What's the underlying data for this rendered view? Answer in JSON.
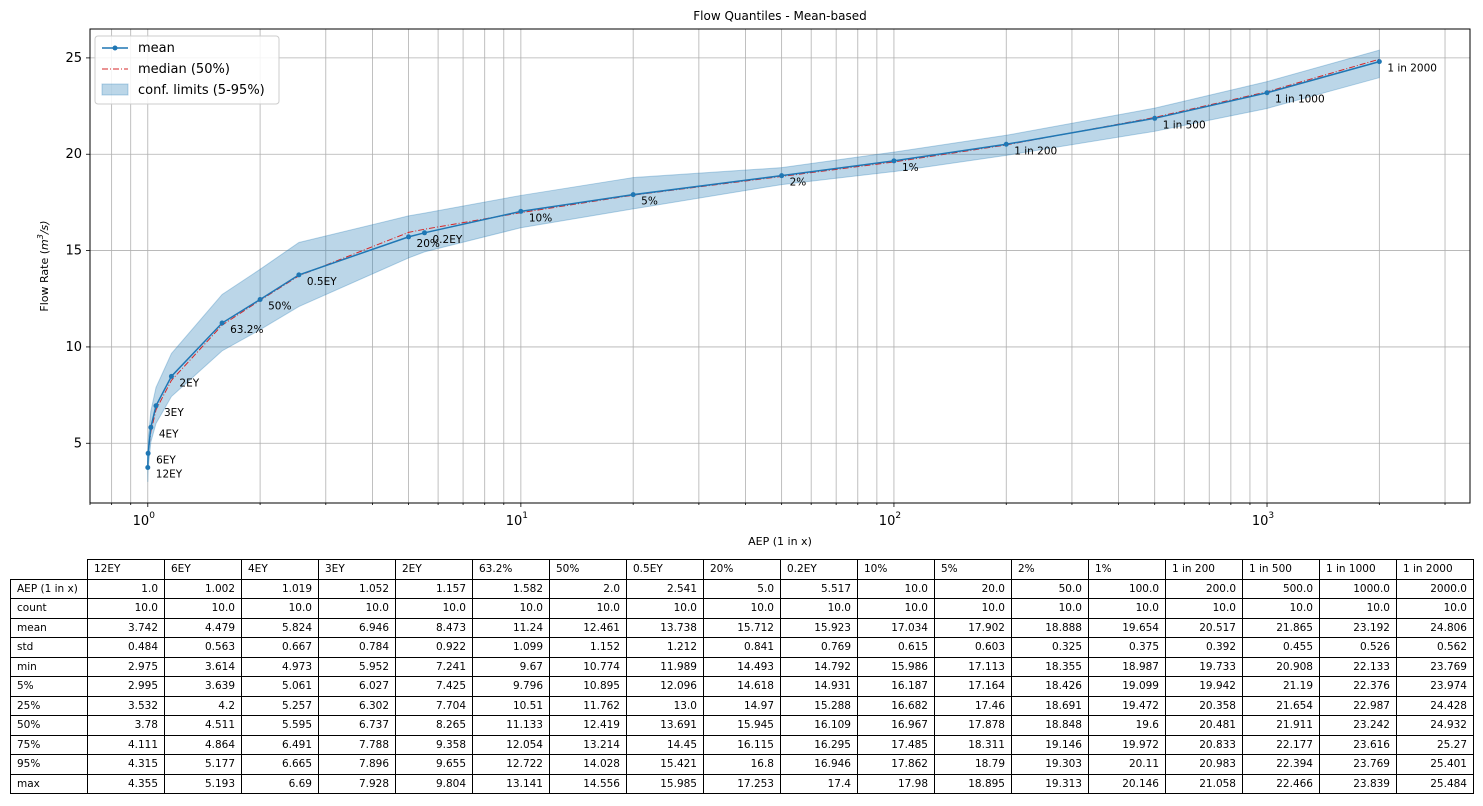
{
  "chart_data": {
    "type": "line",
    "title": "Flow Quantiles - Mean-based",
    "xlabel": "AEP (1 in x)",
    "ylabel_text": "Flow Rate (",
    "ylabel_unit": "m",
    "ylabel_sup": "3",
    "ylabel_tail": "/s)",
    "xscale": "log",
    "xlim": [
      0.7,
      3500
    ],
    "ylim": [
      1.9,
      26.5
    ],
    "xticks": [
      1,
      10,
      100,
      1000
    ],
    "xtick_base": "10",
    "xtick_exponents": [
      "0",
      "1",
      "2",
      "3"
    ],
    "yticks": [
      5,
      10,
      15,
      20,
      25
    ],
    "ytick_labels": [
      "5",
      "10",
      "15",
      "20",
      "25"
    ],
    "grid": true,
    "legend_placement": "top-left",
    "legend": {
      "mean": "mean",
      "median": "median (50%)",
      "conf": "conf. limits (5-95%)"
    },
    "colors": {
      "mean": "#1f77b4",
      "median": "#d62728",
      "band": "#1f77b4"
    },
    "point_labels": [
      "12EY",
      "6EY",
      "4EY",
      "3EY",
      "2EY",
      "63.2%",
      "50%",
      "0.5EY",
      "20%",
      "0.2EY",
      "10%",
      "5%",
      "2%",
      "1%",
      "1 in 200",
      "1 in 500",
      "1 in 1000",
      "1 in 2000"
    ],
    "x": [
      1.0,
      1.002,
      1.019,
      1.052,
      1.157,
      1.582,
      2.0,
      2.541,
      5.0,
      5.517,
      10.0,
      20.0,
      50.0,
      100.0,
      200.0,
      500.0,
      1000.0,
      2000.0
    ],
    "series": [
      {
        "name": "mean",
        "values": [
          3.742,
          4.479,
          5.824,
          6.946,
          8.473,
          11.24,
          12.461,
          13.738,
          15.712,
          15.923,
          17.034,
          17.902,
          18.888,
          19.654,
          20.517,
          21.865,
          23.192,
          24.806
        ]
      },
      {
        "name": "median (50%)",
        "values": [
          3.78,
          4.511,
          5.595,
          6.737,
          8.265,
          11.133,
          12.419,
          13.691,
          15.945,
          16.109,
          16.967,
          17.878,
          18.848,
          19.6,
          20.481,
          21.911,
          23.242,
          24.932
        ]
      },
      {
        "name": "conf. limits (5-95%) lower",
        "values": [
          2.995,
          3.639,
          5.061,
          6.027,
          7.425,
          9.796,
          10.895,
          12.096,
          14.618,
          14.931,
          16.187,
          17.164,
          18.426,
          19.099,
          19.942,
          21.19,
          22.376,
          23.974
        ]
      },
      {
        "name": "conf. limits (5-95%) upper",
        "values": [
          4.315,
          5.177,
          6.665,
          7.896,
          9.655,
          12.722,
          14.028,
          15.421,
          16.8,
          16.946,
          17.862,
          18.79,
          19.303,
          20.11,
          20.983,
          22.394,
          23.769,
          25.401
        ]
      }
    ]
  },
  "table": {
    "columns": [
      "12EY",
      "6EY",
      "4EY",
      "3EY",
      "2EY",
      "63.2%",
      "50%",
      "0.5EY",
      "20%",
      "0.2EY",
      "10%",
      "5%",
      "2%",
      "1%",
      "1 in 200",
      "1 in 500",
      "1 in 1000",
      "1 in 2000"
    ],
    "rows": [
      {
        "label": "AEP (1 in x)",
        "values": [
          "1.0",
          "1.002",
          "1.019",
          "1.052",
          "1.157",
          "1.582",
          "2.0",
          "2.541",
          "5.0",
          "5.517",
          "10.0",
          "20.0",
          "50.0",
          "100.0",
          "200.0",
          "500.0",
          "1000.0",
          "2000.0"
        ]
      },
      {
        "label": "count",
        "values": [
          "10.0",
          "10.0",
          "10.0",
          "10.0",
          "10.0",
          "10.0",
          "10.0",
          "10.0",
          "10.0",
          "10.0",
          "10.0",
          "10.0",
          "10.0",
          "10.0",
          "10.0",
          "10.0",
          "10.0",
          "10.0"
        ]
      },
      {
        "label": "mean",
        "values": [
          "3.742",
          "4.479",
          "5.824",
          "6.946",
          "8.473",
          "11.24",
          "12.461",
          "13.738",
          "15.712",
          "15.923",
          "17.034",
          "17.902",
          "18.888",
          "19.654",
          "20.517",
          "21.865",
          "23.192",
          "24.806"
        ]
      },
      {
        "label": "std",
        "values": [
          "0.484",
          "0.563",
          "0.667",
          "0.784",
          "0.922",
          "1.099",
          "1.152",
          "1.212",
          "0.841",
          "0.769",
          "0.615",
          "0.603",
          "0.325",
          "0.375",
          "0.392",
          "0.455",
          "0.526",
          "0.562"
        ]
      },
      {
        "label": "min",
        "values": [
          "2.975",
          "3.614",
          "4.973",
          "5.952",
          "7.241",
          "9.67",
          "10.774",
          "11.989",
          "14.493",
          "14.792",
          "15.986",
          "17.113",
          "18.355",
          "18.987",
          "19.733",
          "20.908",
          "22.133",
          "23.769"
        ]
      },
      {
        "label": "5%",
        "values": [
          "2.995",
          "3.639",
          "5.061",
          "6.027",
          "7.425",
          "9.796",
          "10.895",
          "12.096",
          "14.618",
          "14.931",
          "16.187",
          "17.164",
          "18.426",
          "19.099",
          "19.942",
          "21.19",
          "22.376",
          "23.974"
        ]
      },
      {
        "label": "25%",
        "values": [
          "3.532",
          "4.2",
          "5.257",
          "6.302",
          "7.704",
          "10.51",
          "11.762",
          "13.0",
          "14.97",
          "15.288",
          "16.682",
          "17.46",
          "18.691",
          "19.472",
          "20.358",
          "21.654",
          "22.987",
          "24.428"
        ]
      },
      {
        "label": "50%",
        "values": [
          "3.78",
          "4.511",
          "5.595",
          "6.737",
          "8.265",
          "11.133",
          "12.419",
          "13.691",
          "15.945",
          "16.109",
          "16.967",
          "17.878",
          "18.848",
          "19.6",
          "20.481",
          "21.911",
          "23.242",
          "24.932"
        ]
      },
      {
        "label": "75%",
        "values": [
          "4.111",
          "4.864",
          "6.491",
          "7.788",
          "9.358",
          "12.054",
          "13.214",
          "14.45",
          "16.115",
          "16.295",
          "17.485",
          "18.311",
          "19.146",
          "19.972",
          "20.833",
          "22.177",
          "23.616",
          "25.27"
        ]
      },
      {
        "label": "95%",
        "values": [
          "4.315",
          "5.177",
          "6.665",
          "7.896",
          "9.655",
          "12.722",
          "14.028",
          "15.421",
          "16.8",
          "16.946",
          "17.862",
          "18.79",
          "19.303",
          "20.11",
          "20.983",
          "22.394",
          "23.769",
          "25.401"
        ]
      },
      {
        "label": "max",
        "values": [
          "4.355",
          "5.193",
          "6.69",
          "7.928",
          "9.804",
          "13.141",
          "14.556",
          "15.985",
          "17.253",
          "17.4",
          "17.98",
          "18.895",
          "19.313",
          "20.146",
          "21.058",
          "22.466",
          "23.839",
          "25.484"
        ]
      }
    ]
  }
}
